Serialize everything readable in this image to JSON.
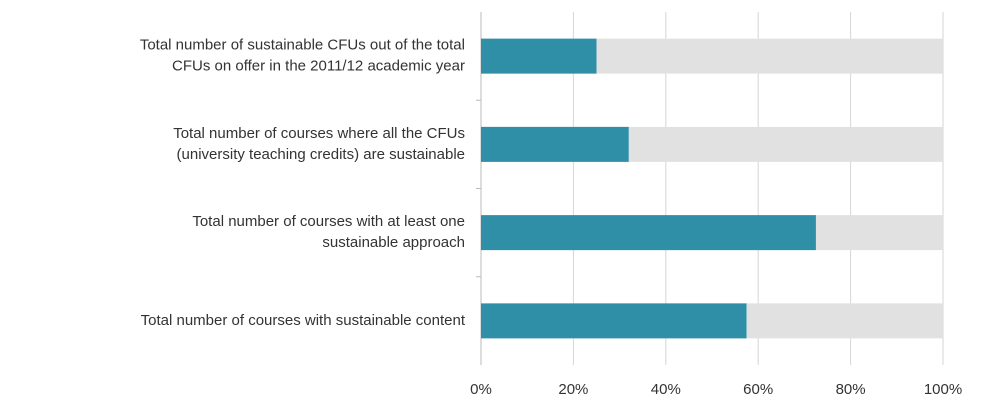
{
  "chart_data": {
    "type": "stacked_barh",
    "categories": [
      "Total number of sustainable CFUs out of the total\nCFUs on offer in the 2011/12 academic year",
      "Total number of courses where all the CFUs\n(university teaching credits) are sustainable",
      "Total number of courses with at least one\nsustainable approach",
      "Total number of courses with sustainable content"
    ],
    "series": [
      {
        "color": "#2f8fa7",
        "values": [
          25,
          32,
          72.5,
          57.5
        ]
      },
      {
        "color": "#e1e1e1",
        "values": [
          75,
          68,
          27.5,
          42.5
        ]
      }
    ],
    "xlim": [
      0,
      100
    ],
    "xticks": [
      {
        "value": 0,
        "label": "0%"
      },
      {
        "value": 20,
        "label": "20%"
      },
      {
        "value": 40,
        "label": "40%"
      },
      {
        "value": 60,
        "label": "60%"
      },
      {
        "value": 80,
        "label": "80%"
      },
      {
        "value": 100,
        "label": "100%"
      }
    ],
    "grid": true
  }
}
